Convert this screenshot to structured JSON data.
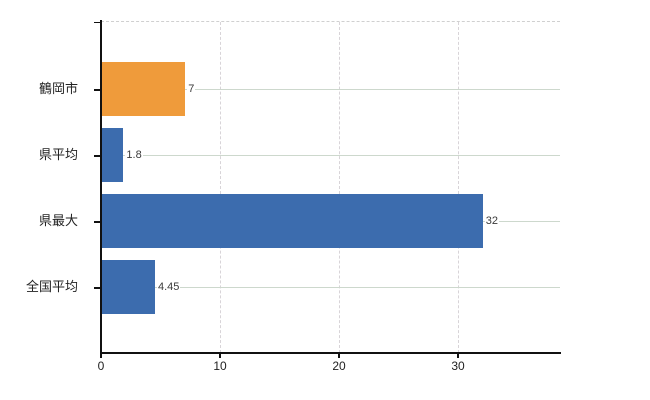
{
  "chart_data": {
    "type": "bar",
    "orientation": "horizontal",
    "title": "",
    "xlabel": "",
    "ylabel": "",
    "categories": [
      "鶴岡市",
      "県平均",
      "県最大",
      "全国平均"
    ],
    "values": [
      7,
      1.8,
      32,
      4.45
    ],
    "value_labels": [
      "7",
      "1.8",
      "32",
      "4.45"
    ],
    "bar_colors": [
      "#EF9B3B",
      "#3C6CAE",
      "#3C6CAE",
      "#3C6CAE"
    ],
    "x_tick_values": [
      0,
      10,
      20,
      30
    ],
    "x_tick_labels": [
      "0",
      "10",
      "20",
      "30"
    ],
    "xlim": [
      0,
      38.5
    ],
    "legend": "none",
    "grid": {
      "vertical_dashed_lines": true,
      "horizontal_row_lines": true,
      "top_dashed_border": true
    }
  },
  "colors": {
    "background": "#ffffff",
    "orange_bar": "#EF9B3B",
    "blue_bar": "#3C6CAE",
    "axis": "#111111",
    "tick_text": "#222222",
    "value_text": "#3a3a3a",
    "vertical_grid": "#d8d4d8",
    "row_grid": "#cdd8cd",
    "top_border": "#d0d0d0"
  }
}
